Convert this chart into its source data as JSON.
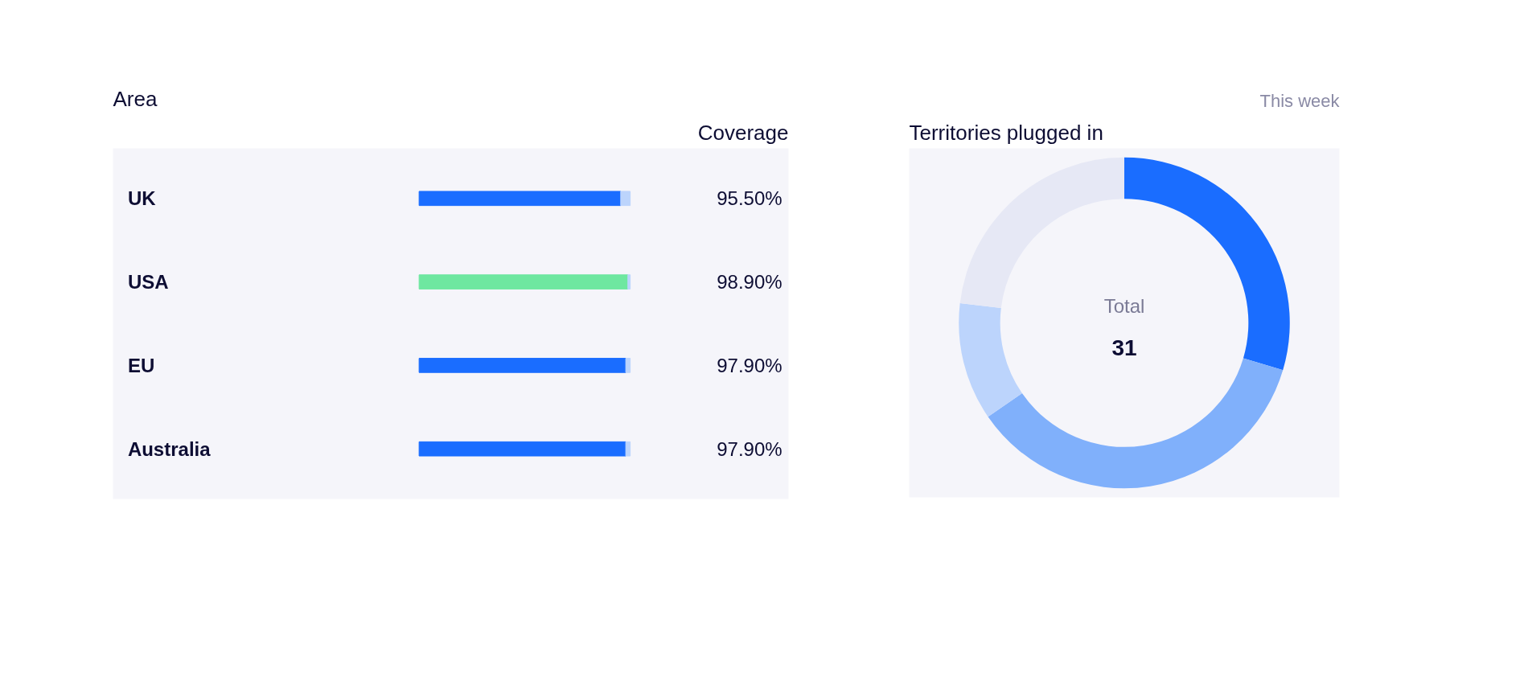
{
  "chart_data": [
    {
      "type": "bar",
      "orientation": "horizontal",
      "title": "Area",
      "xlabel": "Coverage",
      "categories": [
        "UK",
        "USA",
        "EU",
        "Australia"
      ],
      "stacked": true,
      "xlim": [
        0,
        100
      ],
      "series": [
        {
          "colors": [
            "#1a6dff",
            "#6ee7a0",
            "#1a6dff",
            "#1a6dff"
          ],
          "values": [
            95.5,
            98.9,
            97.9,
            97.9
          ],
          "value_labels": [
            "95.50%",
            "98.90%",
            "97.90%",
            "97.90%"
          ]
        },
        {
          "color": "#bcd4fc",
          "values": [
            4.5,
            1.1,
            2.1,
            2.1
          ]
        }
      ],
      "tick_labels": "y",
      "grid": false
    },
    {
      "type": "donut",
      "title": "Territories plugged in",
      "subtitle": "This week",
      "categories": [
        null,
        null,
        null,
        null
      ],
      "values": [
        29.6,
        35.8,
        11.5,
        23.1
      ],
      "colors": [
        "#1a6dff",
        "#80b0fb",
        "#bcd4fc",
        "#e6e8f5"
      ],
      "annotations": [
        "Total",
        "31"
      ]
    }
  ]
}
